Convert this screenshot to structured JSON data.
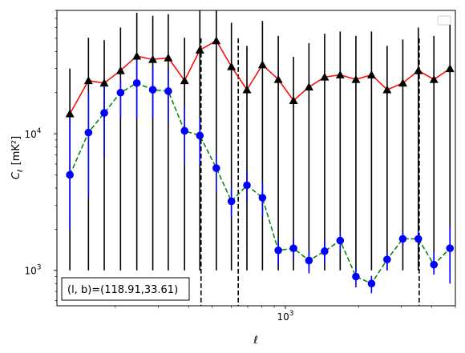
{
  "chart_data": {
    "type": "line",
    "xlabel": "ℓ",
    "ylabel_main": "C",
    "ylabel_sub": "ℓ",
    "ylabel_unit": "[mK²]",
    "x_scale": "log",
    "y_scale": "log",
    "xlim": [
      115,
      5000
    ],
    "ylim": [
      550,
      80000
    ],
    "x_ticks": [
      {
        "value": 1000,
        "base": "10",
        "exp": "3"
      }
    ],
    "y_ticks": [
      {
        "value": 1000,
        "base": "10",
        "exp": "3"
      },
      {
        "value": 10000,
        "base": "10",
        "exp": "4"
      }
    ],
    "annotation": "(l, b)=(118.91,33.61)",
    "legend_placement": "top-right",
    "vlines": [
      450,
      640,
      3550
    ],
    "series": [
      {
        "marker": "triangle",
        "line_color": "#ff0000",
        "marker_color": "#000000",
        "x": [
          130,
          155,
          180,
          210,
          245,
          285,
          330,
          385,
          445,
          520,
          600,
          695,
          805,
          935,
          1080,
          1250,
          1450,
          1680,
          1950,
          2260,
          2620,
          3040,
          3520,
          4080,
          4750
        ],
        "y": [
          14000,
          24500,
          23500,
          29000,
          37000,
          35000,
          36000,
          24500,
          41000,
          48000,
          31000,
          21000,
          32000,
          25000,
          17500,
          22000,
          26000,
          27000,
          25000,
          27000,
          21000,
          23500,
          29000,
          25000,
          30000
        ],
        "err_lo": [
          13000,
          23500,
          22500,
          28000,
          36000,
          34000,
          35000,
          23500,
          40000,
          47000,
          30000,
          20000,
          31000,
          24000,
          16500,
          21000,
          25000,
          26000,
          24000,
          26000,
          20000,
          22500,
          28000,
          24000,
          29000
        ],
        "err_hi": [
          16000,
          26000,
          25000,
          31000,
          40000,
          38000,
          39000,
          26000,
          44000,
          51000,
          34000,
          23000,
          35000,
          27000,
          19000,
          24000,
          28000,
          29000,
          27000,
          29000,
          23000,
          25500,
          31000,
          27000,
          33000
        ]
      },
      {
        "marker": "circle",
        "line_color": "#008000",
        "marker_color": "#0000ff",
        "x": [
          130,
          155,
          180,
          210,
          245,
          285,
          330,
          385,
          445,
          520,
          600,
          695,
          805,
          935,
          1080,
          1250,
          1450,
          1680,
          1950,
          2260,
          2620,
          3040,
          3520,
          4080,
          4750
        ],
        "y": [
          5000,
          10200,
          14200,
          20000,
          23500,
          21000,
          20500,
          10500,
          9700,
          5600,
          3200,
          4200,
          3400,
          1400,
          1450,
          1180,
          1380,
          1650,
          900,
          800,
          1200,
          1700,
          1700,
          1100,
          1450
        ],
        "err_lo": [
          3000,
          6800,
          7400,
          7000,
          10500,
          8000,
          8500,
          4500,
          3700,
          1900,
          700,
          1000,
          900,
          300,
          250,
          230,
          250,
          250,
          150,
          120,
          200,
          170,
          150,
          170,
          650
        ],
        "err_hi": [
          8000,
          9800,
          7800,
          5000,
          11500,
          10000,
          9500,
          5500,
          3300,
          1400,
          800,
          1100,
          900,
          250,
          250,
          220,
          270,
          250,
          150,
          110,
          150,
          200,
          250,
          250,
          650
        ]
      }
    ]
  }
}
